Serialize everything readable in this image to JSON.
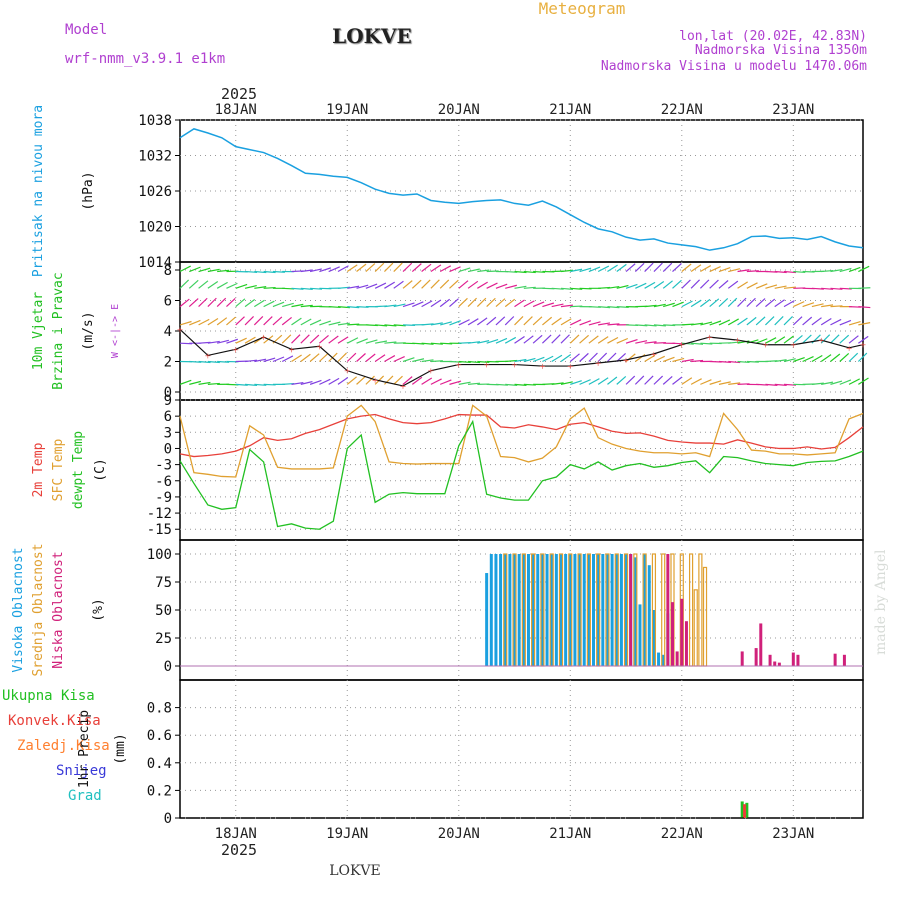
{
  "header": {
    "title": "Meteogram",
    "station": "LOKVE",
    "model_label": "Model",
    "model_name": "wrf-nmm_v3.9.1  e1km",
    "lonlat": "lon,lat (20.02E, 42.83N)",
    "altitude": "Nadmorska Visina 1350m",
    "model_altitude": "Nadmorska Visina u modelu 1470.06m",
    "footer_station": "LOKVE",
    "credit": "made by Angel",
    "year": "2025",
    "days": [
      "18JAN",
      "19JAN",
      "20JAN",
      "21JAN",
      "22JAN",
      "23JAN"
    ]
  },
  "colors": {
    "pressure": "#1aa0e0",
    "t2m": "#e8403a",
    "sfc": "#e0a030",
    "dewpt": "#22c022",
    "high_cloud": "#1aa0e0",
    "mid_cloud": "#e0a030",
    "low_cloud": "#d0207a",
    "total_precip": "#22c022",
    "conv_precip": "#e8403a",
    "frozen_precip": "#ff8030",
    "snow": "#3a3ad8",
    "hail": "#20c0c0",
    "title": "#e8b040",
    "meta": "#b040d0"
  },
  "chart_data": [
    {
      "type": "line",
      "name": "pressure",
      "ylabel": "Pritisak na nivou mora",
      "unit": "(hPa)",
      "ylim": [
        1014,
        1038
      ],
      "yticks": [
        1014,
        1020,
        1026,
        1032,
        1038
      ],
      "grid": true,
      "x": [
        0,
        3,
        6,
        9,
        12,
        15,
        18,
        21,
        24,
        27,
        30,
        33,
        36,
        39,
        42,
        45,
        48,
        51,
        54,
        57,
        60,
        63,
        66,
        69,
        72,
        75,
        78,
        81,
        84,
        87,
        90,
        93,
        96,
        99,
        102,
        105,
        108,
        111,
        114,
        117,
        120,
        123,
        126,
        129,
        132,
        135,
        138,
        141,
        144,
        147
      ],
      "series": [
        {
          "values": [
            1035,
            1036.5,
            1035.8,
            1035,
            1033.5,
            1033,
            1032.5,
            1031.5,
            1030.3,
            1029,
            1028.8,
            1028.5,
            1028.3,
            1027.4,
            1026.3,
            1025.6,
            1025.3,
            1025.5,
            1024.4,
            1024.1,
            1023.9,
            1024.2,
            1024.4,
            1024.5,
            1023.9,
            1023.6,
            1024.3,
            1023.3,
            1022,
            1020.7,
            1019.6,
            1019.1,
            1018.2,
            1017.7,
            1017.9,
            1017.2,
            1016.9,
            1016.6,
            1016,
            1016.4,
            1017.1,
            1018.3,
            1018.4,
            1018,
            1018.1,
            1017.8,
            1018.3,
            1017.4,
            1016.7,
            1016.4
          ]
        }
      ]
    },
    {
      "type": "scatter",
      "name": "wind",
      "ylabel": "10m Vjetar Brzina i Pravac",
      "unit": "(m/s)",
      "direction_key": "W <-|-> E",
      "ylim": [
        0,
        8
      ],
      "yticks": [
        0,
        2,
        4,
        6,
        8
      ],
      "grid": true,
      "series": [
        {
          "name": "brzina",
          "x": [
            0,
            6,
            12,
            18,
            24,
            30,
            36,
            42,
            48,
            54,
            60,
            66,
            72,
            78,
            84,
            90,
            96,
            102,
            108,
            114,
            120,
            126,
            132,
            138,
            144,
            147
          ],
          "values": [
            4.1,
            2.4,
            2.8,
            3.6,
            2.8,
            3.0,
            1.4,
            0.8,
            0.4,
            1.4,
            1.8,
            1.8,
            1.8,
            1.7,
            1.7,
            1.9,
            2.1,
            2.5,
            3.1,
            3.6,
            3.4,
            3.1,
            3.1,
            3.4,
            2.9,
            3.1
          ]
        }
      ]
    },
    {
      "type": "line",
      "name": "temperature",
      "ylabel": "2m Temp SFC Temp dewpt Temp",
      "unit": "(C)",
      "ylim": [
        -17,
        9
      ],
      "yticks": [
        9,
        6,
        3,
        0,
        -3,
        -6,
        -9,
        -12,
        -15
      ],
      "grid": true,
      "x": [
        0,
        3,
        6,
        9,
        12,
        15,
        18,
        21,
        24,
        27,
        30,
        33,
        36,
        39,
        42,
        45,
        48,
        51,
        54,
        57,
        60,
        63,
        66,
        69,
        72,
        75,
        78,
        81,
        84,
        87,
        90,
        93,
        96,
        99,
        102,
        105,
        108,
        111,
        114,
        117,
        120,
        123,
        126,
        129,
        132,
        135,
        138,
        141,
        144,
        147
      ],
      "series": [
        {
          "name": "2m Temp",
          "values": [
            -1,
            -1.5,
            -1.3,
            -1,
            -0.5,
            0.5,
            2.0,
            1.5,
            1.8,
            2.8,
            3.5,
            4.5,
            5.5,
            6.0,
            6.3,
            5.5,
            4.8,
            4.6,
            4.8,
            5.5,
            6.3,
            6.2,
            6.2,
            4.0,
            3.8,
            4.4,
            4.0,
            3.5,
            4.5,
            4.8,
            4.0,
            3.2,
            2.8,
            2.9,
            2.3,
            1.5,
            1.2,
            1.0,
            1.0,
            0.8,
            1.6,
            1.0,
            0.3,
            0,
            0,
            0.3,
            -0.1,
            0.2,
            2.0,
            4.0
          ]
        },
        {
          "name": "SFC Temp",
          "values": [
            6.0,
            -4.5,
            -4.8,
            -5.2,
            -5.3,
            4.2,
            2.5,
            -3.5,
            -3.8,
            -3.8,
            -3.8,
            -3.6,
            6.0,
            8.0,
            5.0,
            -2.5,
            -2.8,
            -2.9,
            -2.8,
            -2.8,
            -2.8,
            8.0,
            6.0,
            -1.5,
            -1.7,
            -2.5,
            -1.8,
            0.3,
            5.5,
            7.5,
            2.0,
            0.8,
            0,
            -0.5,
            -0.8,
            -0.8,
            -1.0,
            -0.8,
            -1.5,
            6.5,
            3.5,
            -0.3,
            -0.5,
            -1.0,
            -1.0,
            -1.2,
            -1.0,
            -0.8,
            5.5,
            6.5
          ]
        },
        {
          "name": "dewpt Temp",
          "values": [
            -2.3,
            -6.5,
            -10.5,
            -11.3,
            -11.0,
            -0.2,
            -2.5,
            -14.5,
            -14.0,
            -14.8,
            -15.0,
            -13.5,
            0,
            2.5,
            -10.0,
            -8.5,
            -8.2,
            -8.4,
            -8.4,
            -8.4,
            0.5,
            5.0,
            -8.5,
            -9.2,
            -9.6,
            -9.6,
            -6.0,
            -5.3,
            -3.0,
            -3.8,
            -2.5,
            -4.0,
            -3.2,
            -2.8,
            -3.5,
            -3.2,
            -2.6,
            -2.3,
            -4.5,
            -1.5,
            -1.7,
            -2.3,
            -2.8,
            -3.0,
            -3.2,
            -2.6,
            -2.4,
            -2.3,
            -1.5,
            -0.5
          ]
        }
      ]
    },
    {
      "type": "bar",
      "name": "cloud",
      "ylabel": "Visoka Oblacnost Srednja Oblacnost Niska Oblacnost",
      "unit": "(%)",
      "ylim": [
        0,
        100
      ],
      "yticks": [
        0,
        25,
        50,
        75,
        100
      ],
      "grid": true,
      "series": [
        {
          "name": "Visoka Oblacnost",
          "x": [
            66,
            67,
            68,
            69,
            70,
            71,
            72,
            73,
            74,
            75,
            76,
            77,
            78,
            79,
            80,
            81,
            82,
            83,
            84,
            85,
            86,
            87,
            88,
            89,
            90,
            91,
            92,
            93,
            94,
            95,
            96,
            97,
            98,
            99,
            100,
            101,
            102,
            103,
            104,
            105,
            106
          ],
          "values": [
            83,
            100,
            100,
            100,
            100,
            100,
            100,
            100,
            100,
            100,
            100,
            100,
            100,
            100,
            100,
            100,
            100,
            100,
            100,
            100,
            100,
            100,
            100,
            100,
            100,
            100,
            100,
            100,
            100,
            100,
            100,
            100,
            97,
            55,
            100,
            90,
            50,
            12,
            10,
            47,
            55
          ]
        },
        {
          "name": "Srednja Oblacnost",
          "x": [
            70,
            72,
            74,
            76,
            78,
            80,
            82,
            84,
            86,
            88,
            90,
            92,
            94,
            96,
            98,
            100,
            102,
            104,
            106,
            108,
            110,
            111,
            112,
            113
          ],
          "values": [
            100,
            100,
            100,
            100,
            100,
            100,
            100,
            100,
            100,
            100,
            100,
            100,
            100,
            100,
            100,
            100,
            100,
            100,
            100,
            100,
            100,
            68,
            100,
            88
          ]
        },
        {
          "name": "Niska Oblacnost",
          "x": [
            97,
            105,
            106,
            107,
            108,
            109,
            121,
            124,
            125,
            127,
            128,
            129,
            132,
            133,
            141,
            143
          ],
          "values": [
            100,
            100,
            57,
            13,
            60,
            40,
            13,
            16,
            38,
            10,
            4,
            3,
            12,
            10,
            11,
            10
          ]
        }
      ]
    },
    {
      "type": "bar",
      "name": "precip",
      "ylabel": "1hr Precip",
      "unit": "(mm)",
      "legend": [
        "Ukupna Kisa",
        "Konvek.Kisa",
        "Zaledj.Kisa",
        "Snijeg",
        "Grad"
      ],
      "ylim": [
        0,
        1
      ],
      "yticks": [
        0,
        0.2,
        0.4,
        0.6,
        0.8
      ],
      "grid": true,
      "series": [
        {
          "name": "Ukupna Kisa",
          "x": [
            121,
            122
          ],
          "values": [
            0.12,
            0.11
          ]
        },
        {
          "name": "Konvek.Kisa",
          "x": [
            121.5
          ],
          "values": [
            0.1
          ]
        }
      ]
    }
  ]
}
